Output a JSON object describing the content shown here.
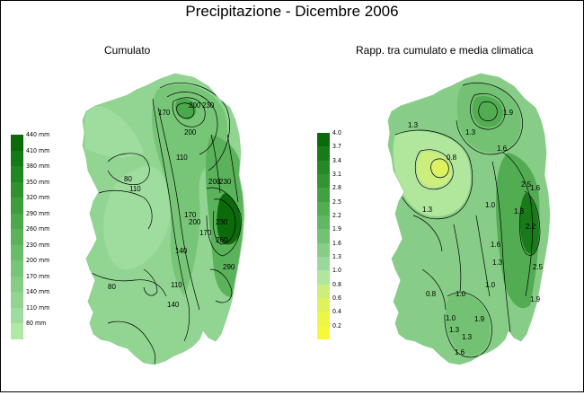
{
  "figure": {
    "title": "Precipitazione - Dicembre 2006",
    "left_map": {
      "subtitle": "Cumulato",
      "legend_labels": [
        "440 mm",
        "410 mm",
        "380 mm",
        "350 mm",
        "320 mm",
        "290 mm",
        "260 mm",
        "230 mm",
        "200 mm",
        "170 mm",
        "140 mm",
        "110 mm",
        "80 mm"
      ],
      "legend_colors": [
        "#0b6b0b",
        "#157915",
        "#228622",
        "#2f922f",
        "#3d9e3d",
        "#4ba84b",
        "#5ab35a",
        "#69bd69",
        "#77c577",
        "#85cd85",
        "#92d592",
        "#9fdd9f",
        "#b2e8a6"
      ],
      "contour_labels": [
        "170",
        "200",
        "230",
        "200",
        "110",
        "80",
        "110",
        "170",
        "140",
        "170",
        "200",
        "200",
        "230",
        "230",
        "260",
        "290",
        "110",
        "140",
        "80"
      ]
    },
    "right_map": {
      "subtitle": "Rapp. tra cumulato e media climatica",
      "legend_labels": [
        "4.0",
        "3.7",
        "3.4",
        "3.1",
        "2.8",
        "2.5",
        "2.2",
        "1.9",
        "1.6",
        "1.3",
        "1.0",
        "0.8",
        "0.6",
        "0.4",
        "0.2"
      ],
      "legend_colors": [
        "#0b6b0b",
        "#197a19",
        "#268826",
        "#339433",
        "#42a042",
        "#52ac52",
        "#62b762",
        "#73c173",
        "#87cc87",
        "#9bd89b",
        "#b1e69d",
        "#cbee7c",
        "#dff25e",
        "#eef545",
        "#f8f83a"
      ],
      "contour_labels": [
        "1.3",
        "1.9",
        "1.3",
        "1.6",
        "0.8",
        "1.0",
        "1.3",
        "1.3",
        "1.0",
        "1.6",
        "1.3",
        "1.0",
        "0.8",
        "1.0",
        "1.3",
        "1.9",
        "1.6",
        "2.2",
        "2.5",
        "2.5",
        "1.9",
        "1.6",
        "1.3"
      ]
    }
  }
}
